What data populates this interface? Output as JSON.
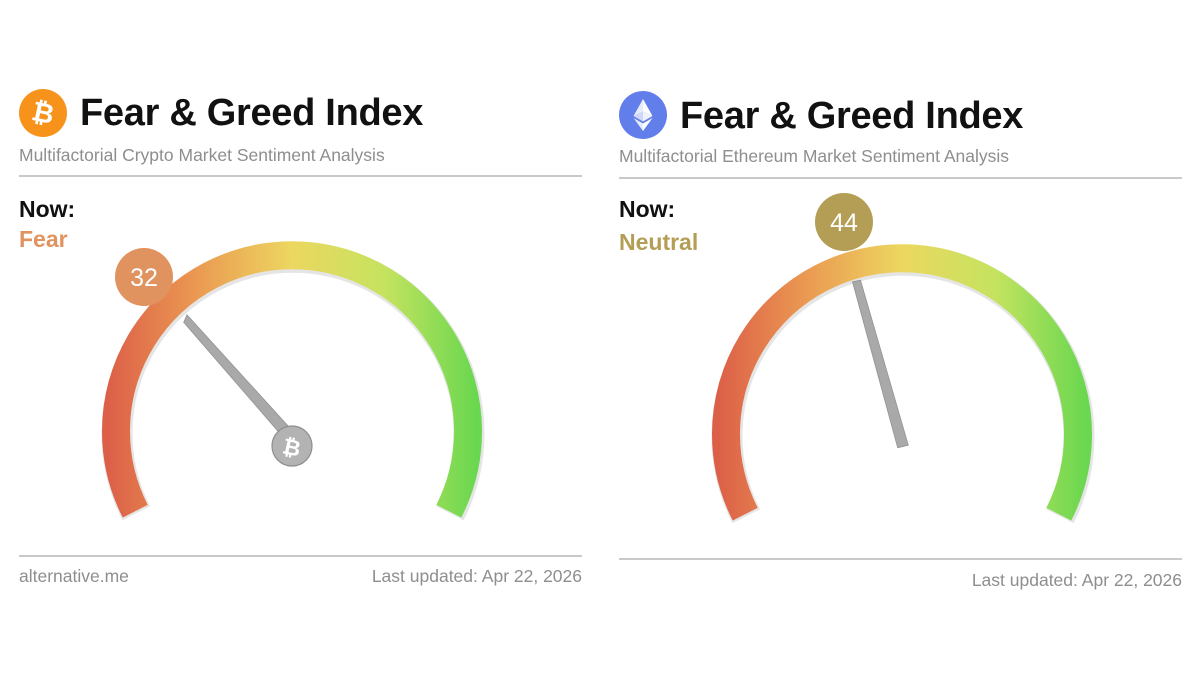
{
  "panels": [
    {
      "coin_icon": "bitcoin-icon",
      "coin_color": "#f7931a",
      "title": "Fear & Greed Index",
      "subtitle": "Multifactorial Crypto Market Sentiment Analysis",
      "now_label": "Now:",
      "classification": "Fear",
      "classification_color": "#e0935e",
      "value": "32",
      "value_number": 32,
      "footer_source": "alternative.me",
      "last_updated": "Last updated: Apr 22, 2026"
    },
    {
      "coin_icon": "ethereum-icon",
      "coin_color": "#627eea",
      "title": "Fear & Greed Index",
      "subtitle": "Multifactorial Ethereum Market Sentiment Analysis",
      "now_label": "Now:",
      "classification": "Neutral",
      "classification_color": "#b49e56",
      "value": "44",
      "value_number": 44,
      "last_updated": "Last updated: Apr 22, 2026"
    }
  ],
  "gauge_colors": {
    "extreme_fear": "#dc5f48",
    "fear": "#eb9b52",
    "neutral": "#ecd760",
    "greed": "#c5e35f",
    "extreme_greed": "#69d74f",
    "needle": "#a9a9a9"
  }
}
